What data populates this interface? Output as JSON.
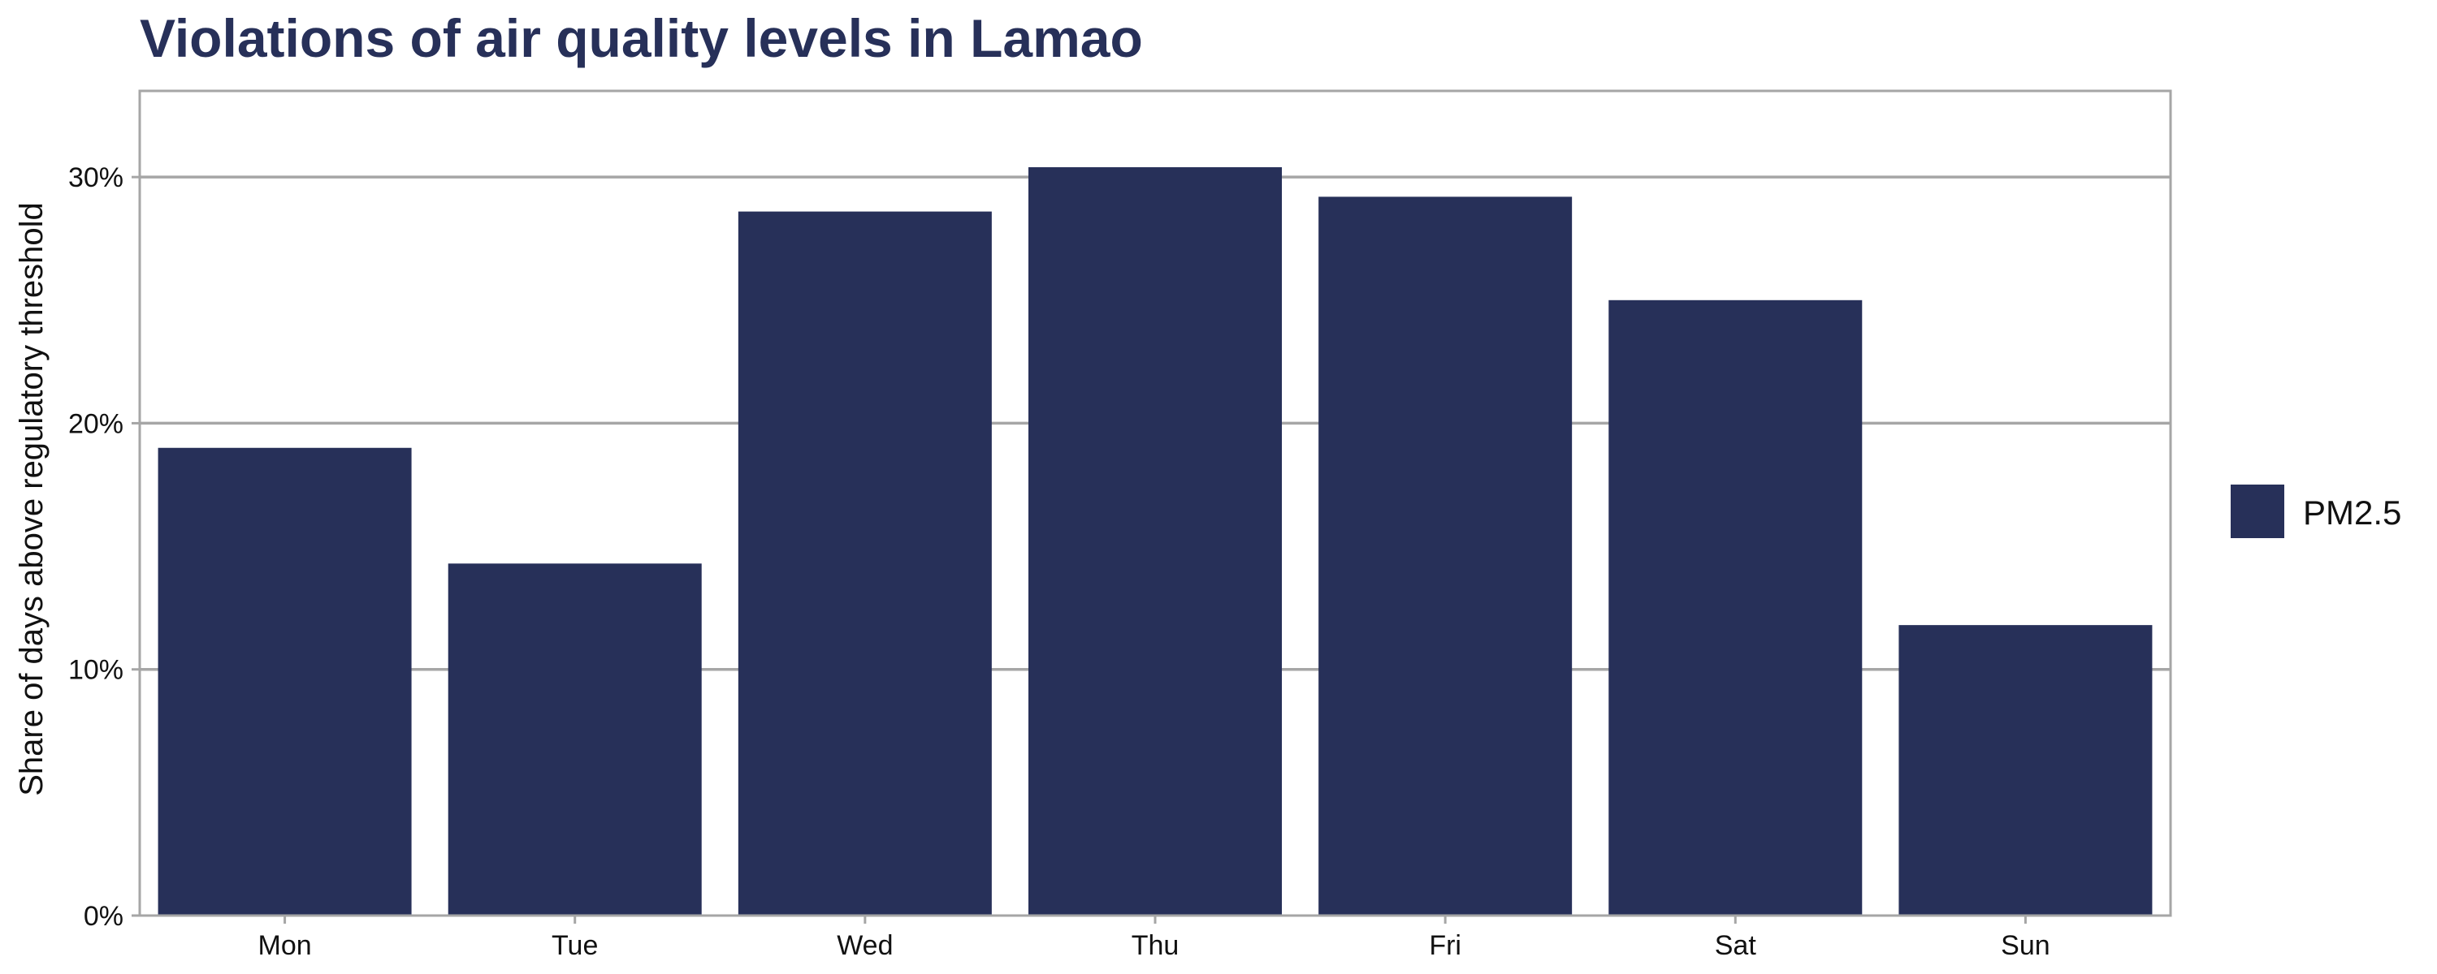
{
  "chart_data": {
    "type": "bar",
    "title": "Violations of air quality levels in Lamao",
    "xlabel": "",
    "ylabel": "Share of days above regulatory threshold",
    "categories": [
      "Mon",
      "Tue",
      "Wed",
      "Thu",
      "Fri",
      "Sat",
      "Sun"
    ],
    "series": [
      {
        "name": "PM2.5",
        "values": [
          19.0,
          14.3,
          28.6,
          30.4,
          29.2,
          25.0,
          11.8
        ]
      }
    ],
    "y_unit": "%",
    "ylim": [
      0,
      33.5
    ],
    "yticks": [
      0,
      10,
      20,
      30
    ],
    "ytick_labels": [
      "0%",
      "10%",
      "20%",
      "30%"
    ],
    "grid": "horizontal major",
    "legend_position": "right",
    "colors": {
      "bar": "#273059",
      "title": "#273059",
      "grid": "#a6a6a6",
      "frame": "#a6a6a6"
    }
  }
}
